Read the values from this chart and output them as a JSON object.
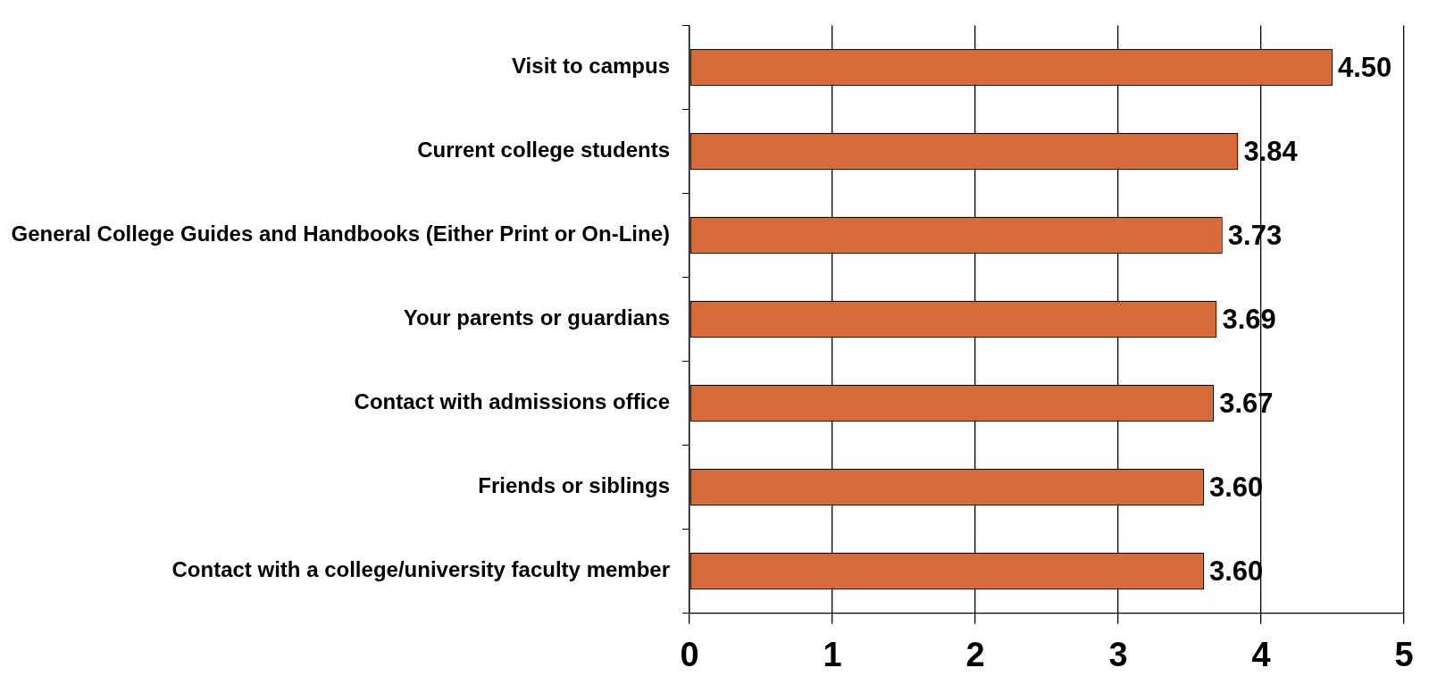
{
  "chart_data": {
    "type": "bar",
    "orientation": "horizontal",
    "categories": [
      "Visit to campus",
      "Current college students",
      "General College Guides and Handbooks (Either Print or On-Line)",
      "Your parents or guardians",
      "Contact with admissions office",
      "Friends or siblings",
      "Contact with a college/university faculty member"
    ],
    "values": [
      4.5,
      3.84,
      3.73,
      3.69,
      3.67,
      3.6,
      3.6
    ],
    "value_labels": [
      "4.50",
      "3.84",
      "3.73",
      "3.69",
      "3.67",
      "3.60",
      "3.60"
    ],
    "color": "#d66a38",
    "xlim": [
      0,
      5
    ],
    "xticks": [
      0,
      1,
      2,
      3,
      4,
      5
    ],
    "grid": "x",
    "legend": false
  }
}
